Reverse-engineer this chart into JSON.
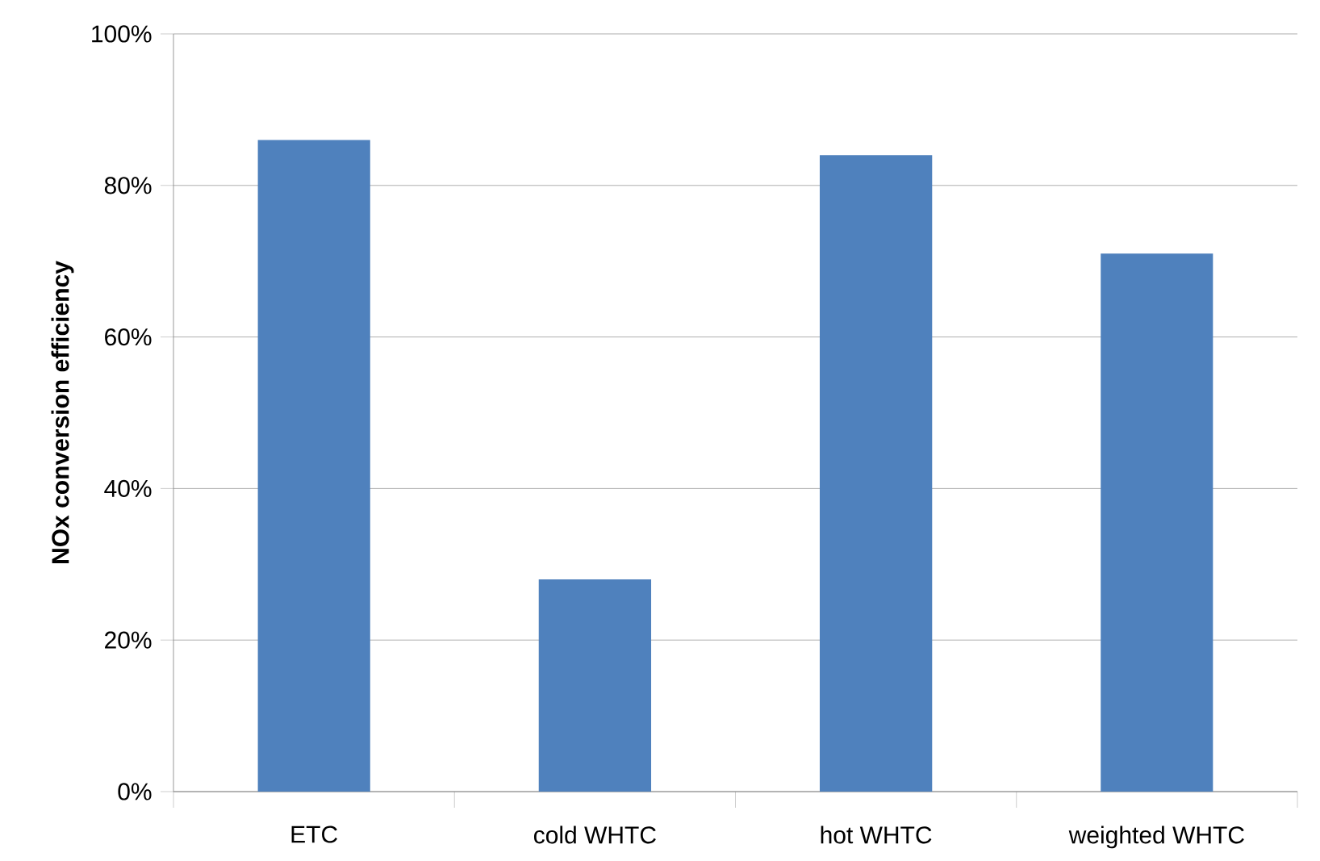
{
  "chart_data": {
    "type": "bar",
    "ylabel": "NOx conversion efficiency",
    "categories": [
      "ETC",
      "cold WHTC",
      "hot WHTC",
      "weighted WHTC"
    ],
    "values": [
      86,
      28,
      84,
      71
    ],
    "color": "#4f81bd",
    "ylim": [
      0,
      100
    ],
    "yticks": [
      {
        "value": 0,
        "label": "0%"
      },
      {
        "value": 20,
        "label": "20%"
      },
      {
        "value": 40,
        "label": "40%"
      },
      {
        "value": 60,
        "label": "60%"
      },
      {
        "value": 80,
        "label": "80%"
      },
      {
        "value": 100,
        "label": "100%"
      }
    ],
    "grid": "y"
  }
}
